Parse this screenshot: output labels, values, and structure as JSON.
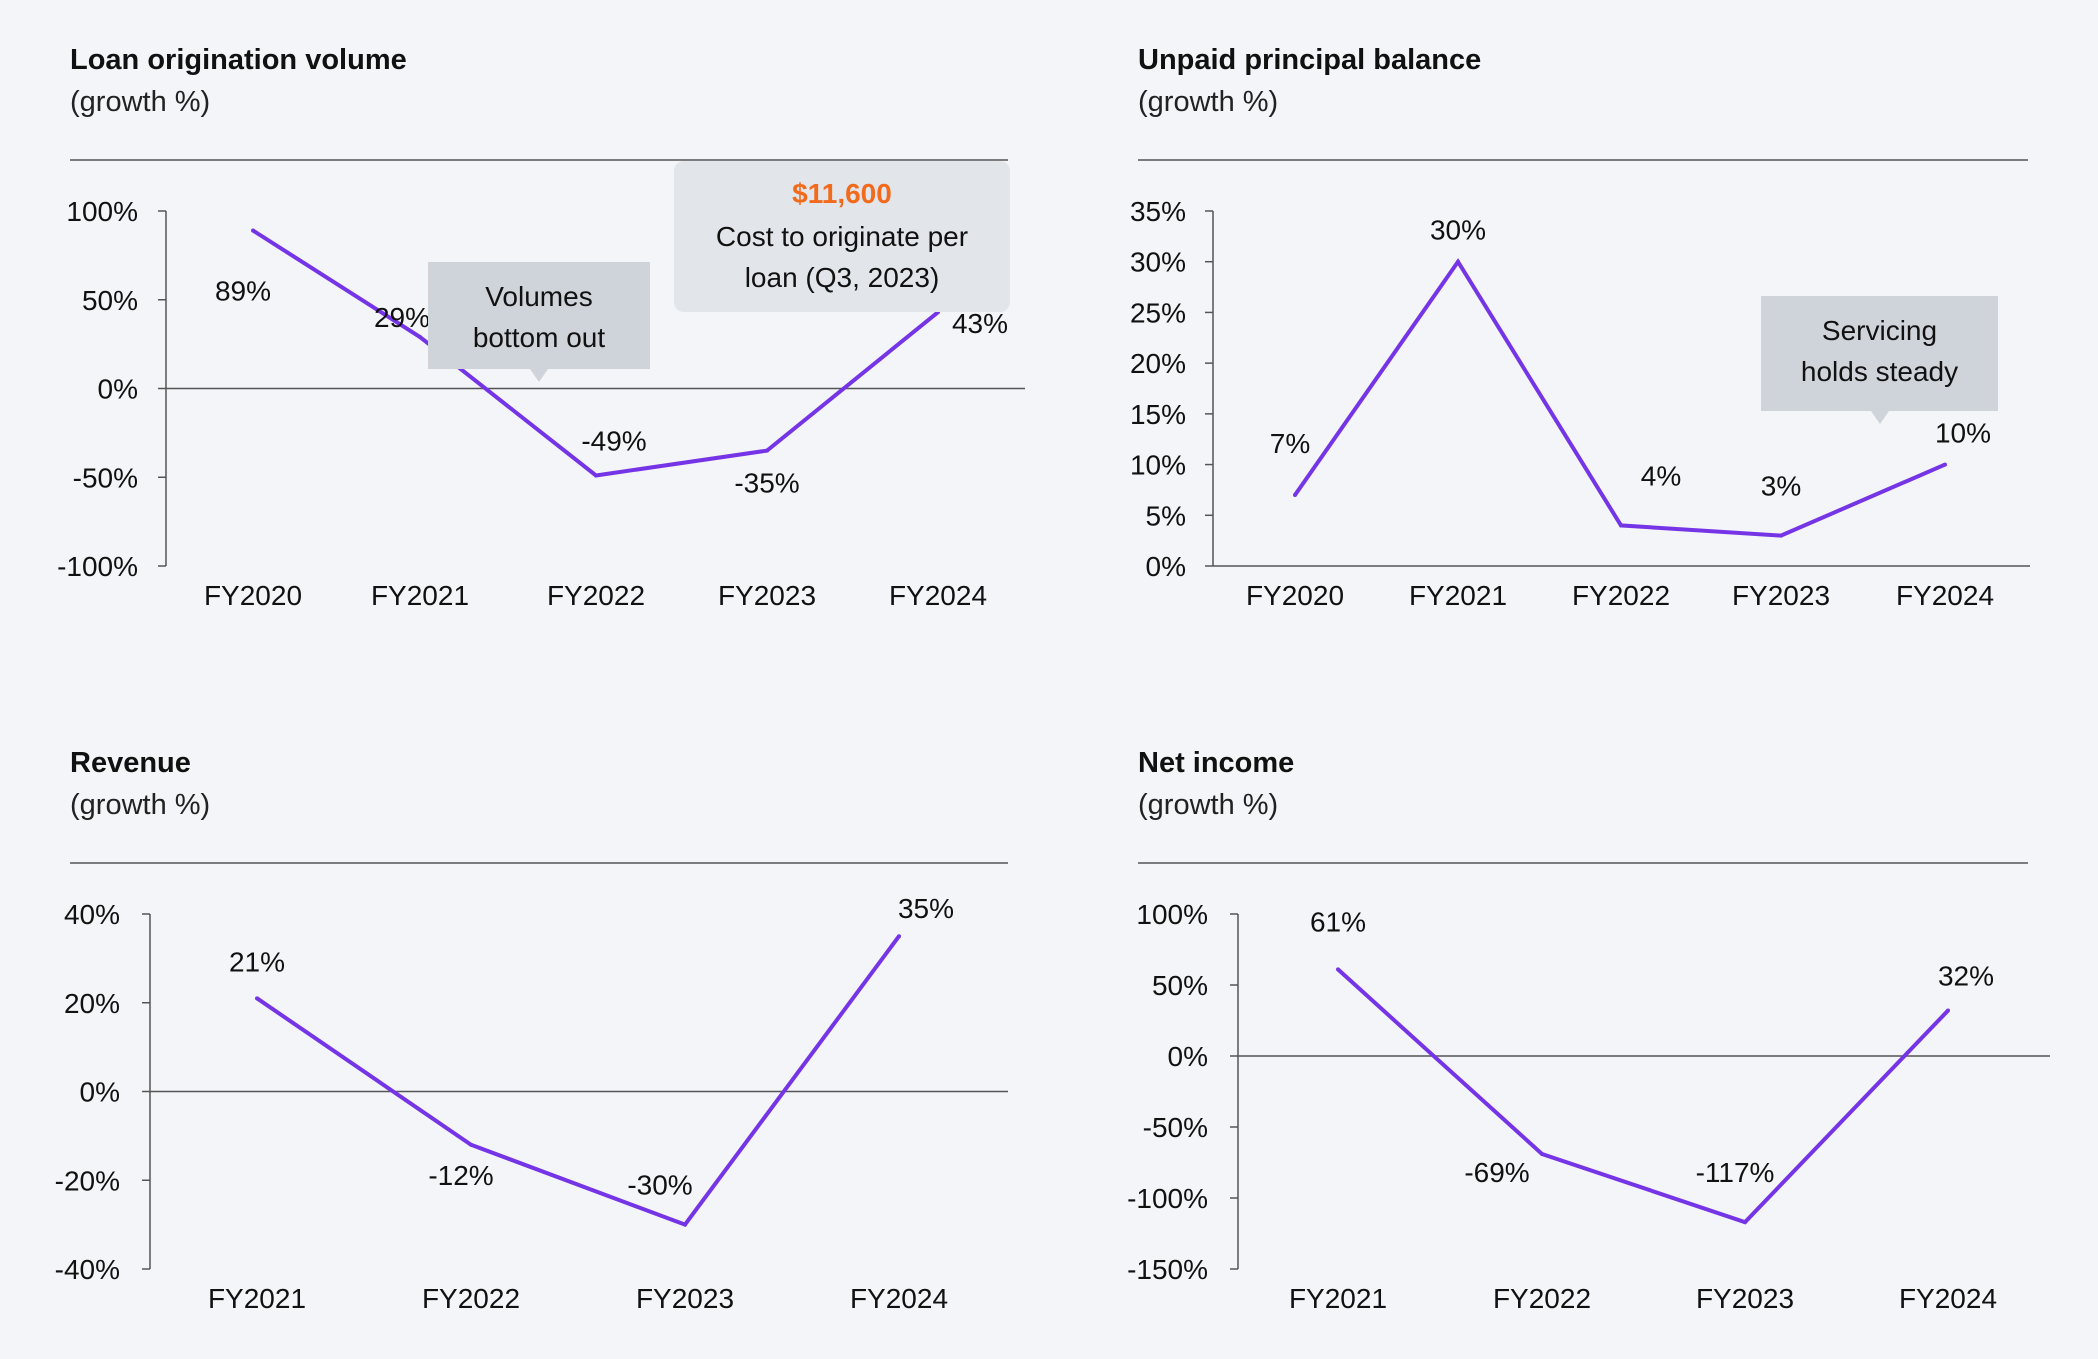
{
  "colors": {
    "line": "#7535e6",
    "axis": "#555555",
    "rule": "#555555",
    "callout_bg": "#cfd3da",
    "callout_bg_light": "#e2e5ea",
    "highlight": "#f26a1b",
    "text": "#111111"
  },
  "chart_data": [
    {
      "type": "line",
      "title": "Loan origination volume",
      "subtitle": "(growth %)",
      "categories": [
        "FY2020",
        "FY2021",
        "FY2022",
        "FY2023",
        "FY2024"
      ],
      "series": [
        {
          "values": [
            89,
            29,
            -49,
            -35,
            43
          ]
        }
      ],
      "point_labels": [
        "89%",
        "29%",
        "-49%",
        "-35%",
        "43%"
      ],
      "ylim": [
        -100,
        100
      ],
      "yticks": [
        100,
        50,
        0,
        -50,
        -100
      ],
      "ytick_labels": [
        "100%",
        "50%",
        "0%",
        "-50%",
        "-100%"
      ],
      "zero_line": true,
      "callouts": [
        {
          "lines": [
            "Volumes",
            "bottom out"
          ]
        },
        {
          "highlight": "$11,600",
          "lines": [
            "Cost to originate per",
            "loan (Q3, 2023)"
          ]
        }
      ]
    },
    {
      "type": "line",
      "title": "Unpaid principal balance",
      "subtitle": "(growth %)",
      "categories": [
        "FY2020",
        "FY2021",
        "FY2022",
        "FY2023",
        "FY2024"
      ],
      "series": [
        {
          "values": [
            7,
            30,
            4,
            3,
            10
          ]
        }
      ],
      "point_labels": [
        "7%",
        "30%",
        "4%",
        "3%",
        "10%"
      ],
      "ylim": [
        0,
        35
      ],
      "yticks": [
        35,
        30,
        25,
        20,
        15,
        10,
        5,
        0
      ],
      "ytick_labels": [
        "35%",
        "30%",
        "25%",
        "20%",
        "15%",
        "10%",
        "5%",
        "0%"
      ],
      "zero_line": false,
      "callouts": [
        {
          "lines": [
            "Servicing",
            "holds steady"
          ]
        }
      ]
    },
    {
      "type": "line",
      "title": "Revenue",
      "subtitle": "(growth %)",
      "categories": [
        "FY2021",
        "FY2022",
        "FY2023",
        "FY2024"
      ],
      "series": [
        {
          "values": [
            21,
            -12,
            -30,
            35
          ]
        }
      ],
      "point_labels": [
        "21%",
        "-12%",
        "-30%",
        "35%"
      ],
      "ylim": [
        -40,
        40
      ],
      "yticks": [
        40,
        20,
        0,
        -20,
        -40
      ],
      "ytick_labels": [
        "40%",
        "20%",
        "0%",
        "-20%",
        "-40%"
      ],
      "zero_line": true,
      "callouts": []
    },
    {
      "type": "line",
      "title": "Net income",
      "subtitle": "(growth %)",
      "categories": [
        "FY2021",
        "FY2022",
        "FY2023",
        "FY2024"
      ],
      "series": [
        {
          "values": [
            61,
            -69,
            -117,
            32
          ]
        }
      ],
      "point_labels": [
        "61%",
        "-69%",
        "-117%",
        "32%"
      ],
      "ylim": [
        -150,
        100
      ],
      "yticks": [
        100,
        50,
        0,
        -50,
        -100,
        -150
      ],
      "ytick_labels": [
        "100%",
        "50%",
        "0%",
        "-50%",
        "-100%",
        "-150%"
      ],
      "zero_line": true,
      "callouts": []
    }
  ]
}
